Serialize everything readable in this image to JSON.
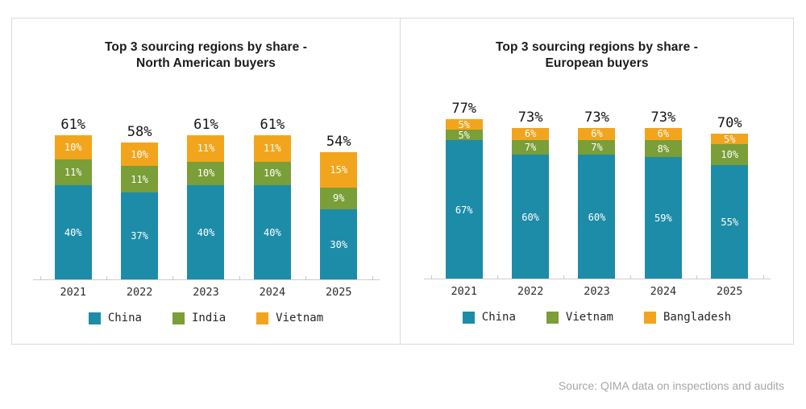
{
  "source_note": "Source: QIMA data on inspections and audits",
  "colors": {
    "teal": "#1D8CA8",
    "green": "#7A9E38",
    "orange": "#F2A51C",
    "panel_border": "#DBDBDB",
    "axis": "#CCCCCC",
    "title_text": "#1B1B1B",
    "bar_label_text": "#FFFFFF",
    "source_text": "#A7A7A7"
  },
  "chart_data": [
    {
      "type": "bar",
      "stacked": true,
      "title_lines": [
        "Top 3 sourcing regions by share -",
        "North American buyers"
      ],
      "categories": [
        "2021",
        "2022",
        "2023",
        "2024",
        "2025"
      ],
      "series": [
        {
          "name": "China",
          "color": "#1D8CA8",
          "values": [
            40,
            37,
            40,
            40,
            30
          ]
        },
        {
          "name": "India",
          "color": "#7A9E38",
          "values": [
            11,
            11,
            10,
            10,
            9
          ]
        },
        {
          "name": "Vietnam",
          "color": "#F2A51C",
          "values": [
            10,
            10,
            11,
            11,
            15
          ]
        }
      ],
      "totals": [
        61,
        58,
        61,
        61,
        54
      ],
      "value_suffix": "%",
      "legend": [
        "China",
        "India",
        "Vietnam"
      ],
      "legend_position": "bottom",
      "grid": false,
      "ylim": [
        0,
        88
      ]
    },
    {
      "type": "bar",
      "stacked": true,
      "title_lines": [
        "Top 3 sourcing regions by share -",
        "European buyers"
      ],
      "categories": [
        "2021",
        "2022",
        "2023",
        "2024",
        "2025"
      ],
      "series": [
        {
          "name": "China",
          "color": "#1D8CA8",
          "values": [
            67,
            60,
            60,
            59,
            55
          ]
        },
        {
          "name": "Vietnam",
          "color": "#7A9E38",
          "values": [
            5,
            7,
            7,
            8,
            10
          ]
        },
        {
          "name": "Bangladesh",
          "color": "#F2A51C",
          "values": [
            5,
            6,
            6,
            6,
            5
          ]
        }
      ],
      "totals": [
        77,
        73,
        73,
        73,
        70
      ],
      "value_suffix": "%",
      "legend": [
        "China",
        "Vietnam",
        "Bangladesh"
      ],
      "legend_position": "bottom",
      "grid": false,
      "ylim": [
        0,
        100
      ]
    }
  ]
}
